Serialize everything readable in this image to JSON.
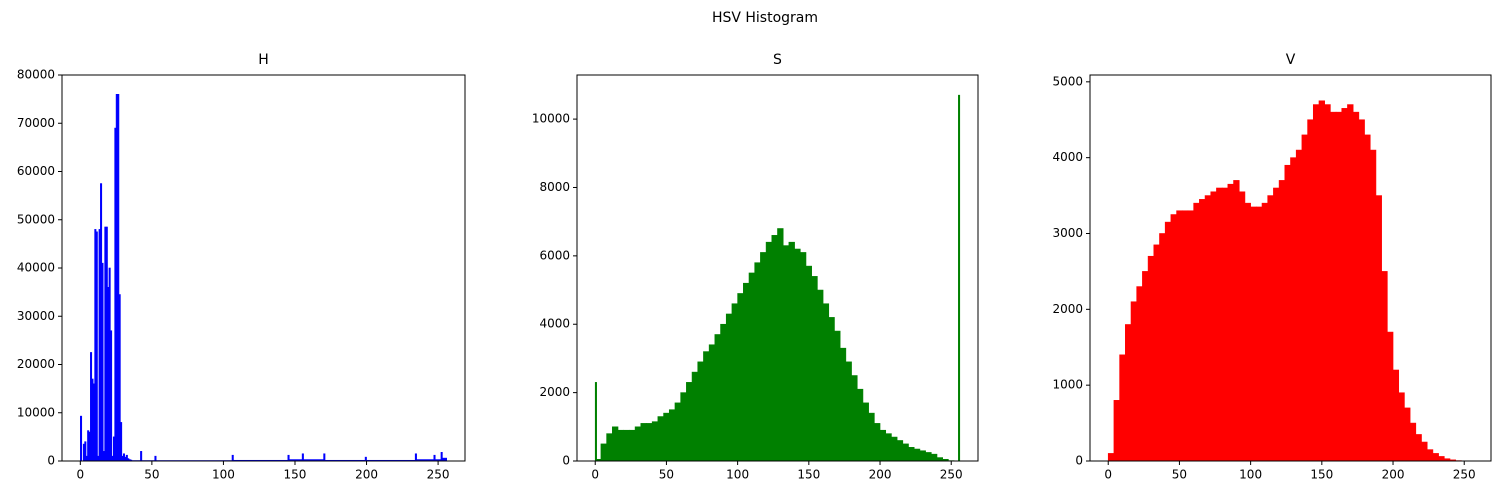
{
  "title": "HSV Histogram",
  "chart_data": [
    {
      "type": "histogram",
      "title": "H",
      "color": "#0000ff",
      "bins": [
        0,
        1,
        2,
        3,
        4,
        5,
        6,
        7,
        8,
        9,
        10,
        11,
        12,
        13,
        14,
        15,
        16,
        17,
        18,
        19,
        20,
        21,
        22,
        23,
        24,
        25,
        26,
        27,
        28,
        29,
        30,
        31,
        32,
        33,
        34,
        35,
        36,
        42,
        43,
        52,
        53,
        106,
        107,
        145,
        146,
        155,
        156,
        170,
        171,
        199,
        200,
        234,
        235,
        247,
        248,
        252,
        253,
        256
      ],
      "values": [
        9300,
        0,
        3500,
        4000,
        1000,
        6300,
        6000,
        22500,
        17000,
        16000,
        48000,
        47500,
        1000,
        48000,
        57500,
        41000,
        2000,
        48500,
        48500,
        36000,
        40000,
        27000,
        1000,
        5000,
        69000,
        76000,
        76000,
        34500,
        8000,
        1000,
        1500,
        800,
        1200,
        500,
        300,
        200,
        100,
        2000,
        100,
        1000,
        100,
        1200,
        150,
        1200,
        300,
        1500,
        300,
        1500,
        150,
        800,
        150,
        1500,
        300,
        1200,
        300,
        1800,
        600
      ],
      "xlim": [
        -12.8,
        268.8
      ],
      "xticks": [
        0,
        50,
        100,
        150,
        200,
        250
      ],
      "ylim": [
        0,
        80000
      ],
      "yticks": [
        0,
        10000,
        20000,
        30000,
        40000,
        50000,
        60000,
        70000,
        80000
      ]
    },
    {
      "type": "histogram",
      "title": "S",
      "color": "#008000",
      "bins": [
        0,
        1,
        4,
        8,
        12,
        16,
        20,
        24,
        28,
        32,
        36,
        40,
        44,
        48,
        52,
        56,
        60,
        64,
        68,
        72,
        76,
        80,
        84,
        88,
        92,
        96,
        100,
        104,
        108,
        112,
        116,
        120,
        124,
        128,
        132,
        136,
        140,
        144,
        148,
        152,
        156,
        160,
        164,
        168,
        172,
        176,
        180,
        184,
        188,
        192,
        196,
        200,
        204,
        208,
        212,
        216,
        220,
        224,
        228,
        232,
        236,
        240,
        244,
        248,
        252,
        255,
        256
      ],
      "values": [
        2300,
        50,
        500,
        800,
        1000,
        900,
        900,
        900,
        1000,
        1100,
        1100,
        1150,
        1300,
        1400,
        1500,
        1700,
        2000,
        2300,
        2600,
        2900,
        3200,
        3400,
        3700,
        4000,
        4300,
        4600,
        4900,
        5200,
        5500,
        5800,
        6100,
        6400,
        6600,
        6800,
        6300,
        6400,
        6200,
        6100,
        5700,
        5400,
        5000,
        4600,
        4200,
        3800,
        3300,
        2900,
        2500,
        2100,
        1700,
        1400,
        1100,
        900,
        800,
        700,
        600,
        500,
        400,
        350,
        300,
        250,
        200,
        100,
        50,
        10,
        0,
        10700
      ],
      "xlim": [
        -12.8,
        268.8
      ],
      "xticks": [
        0,
        50,
        100,
        150,
        200,
        250
      ],
      "ylim": [
        0,
        11290
      ],
      "yticks": [
        0,
        2000,
        4000,
        6000,
        8000,
        10000
      ]
    },
    {
      "type": "histogram",
      "title": "V",
      "color": "#ff0000",
      "bins": [
        0,
        4,
        8,
        12,
        16,
        20,
        24,
        28,
        32,
        36,
        40,
        44,
        48,
        52,
        56,
        60,
        64,
        68,
        72,
        76,
        80,
        84,
        88,
        92,
        96,
        100,
        104,
        108,
        112,
        116,
        120,
        124,
        128,
        132,
        136,
        140,
        144,
        148,
        152,
        156,
        160,
        164,
        168,
        172,
        176,
        180,
        184,
        188,
        192,
        196,
        200,
        204,
        208,
        212,
        216,
        220,
        224,
        228,
        232,
        236,
        240,
        244,
        248,
        252,
        256
      ],
      "values": [
        100,
        800,
        1400,
        1800,
        2100,
        2300,
        2500,
        2700,
        2850,
        3000,
        3150,
        3250,
        3300,
        3300,
        3300,
        3400,
        3450,
        3500,
        3550,
        3600,
        3600,
        3650,
        3700,
        3550,
        3400,
        3350,
        3350,
        3400,
        3500,
        3600,
        3700,
        3900,
        4000,
        4100,
        4300,
        4500,
        4700,
        4750,
        4700,
        4600,
        4600,
        4650,
        4700,
        4600,
        4500,
        4300,
        4100,
        3500,
        2500,
        1700,
        1200,
        900,
        700,
        500,
        350,
        250,
        150,
        100,
        60,
        30,
        15,
        5,
        2,
        0
      ],
      "xlim": [
        -12.8,
        268.8
      ],
      "xticks": [
        0,
        50,
        100,
        150,
        200,
        250
      ],
      "ylim": [
        0,
        5090
      ],
      "yticks": [
        0,
        1000,
        2000,
        3000,
        4000,
        5000
      ]
    }
  ]
}
